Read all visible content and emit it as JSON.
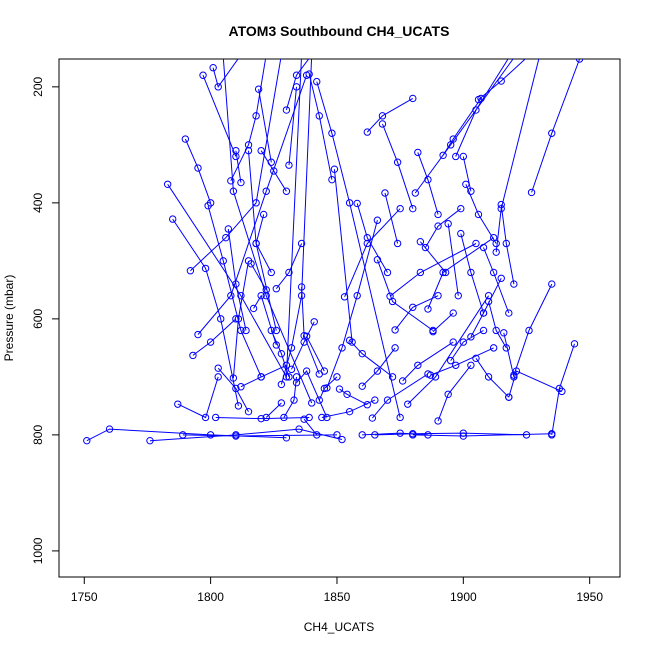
{
  "chart_data": {
    "type": "line",
    "title": "ATOM3 Southbound CH4_UCATS",
    "xlabel": "CH4_UCATS",
    "ylabel": "Pressure (mbar)",
    "xlim": [
      1740,
      1962
    ],
    "ylim": [
      1045,
      152
    ],
    "y_reversed": true,
    "grid": false,
    "legend": "none",
    "x_ticks": [
      1750,
      1800,
      1850,
      1900,
      1950
    ],
    "x_tick_labels": [
      "1750",
      "1800",
      "1850",
      "1900",
      "1950"
    ],
    "y_ticks": [
      200,
      400,
      600,
      800,
      1000
    ],
    "y_tick_labels": [
      "200",
      "400",
      "600",
      "800",
      "1000"
    ],
    "series_color": "#0000ff",
    "marker": "open-circle",
    "profiles": [
      {
        "x": [
          1751,
          1760,
          1800,
          1830
        ],
        "y": [
          810,
          790,
          800,
          805
        ]
      },
      {
        "x": [
          1776,
          1810,
          1835,
          1852
        ],
        "y": [
          810,
          800,
          790,
          808
        ]
      },
      {
        "x": [
          1783,
          1812,
          1830,
          1836
        ],
        "y": [
          368,
          560,
          700,
          145
        ]
      },
      {
        "x": [
          1785,
          1798,
          1804,
          1811
        ],
        "y": [
          428,
          513,
          600,
          750
        ]
      },
      {
        "x": [
          1787,
          1798,
          1803
        ],
        "y": [
          747,
          770,
          700
        ]
      },
      {
        "x": [
          1790,
          1795,
          1800
        ],
        "y": [
          290,
          340,
          400
        ]
      },
      {
        "x": [
          1792,
          1806,
          1818,
          1828
        ],
        "y": [
          517,
          460,
          400,
          145
        ]
      },
      {
        "x": [
          1793,
          1800,
          1810
        ],
        "y": [
          663,
          640,
          600
        ]
      },
      {
        "x": [
          1795,
          1808,
          1822,
          1838
        ],
        "y": [
          627,
          560,
          380,
          180
        ]
      },
      {
        "x": [
          1797,
          1810
        ],
        "y": [
          180,
          320
        ]
      },
      {
        "x": [
          1799,
          1805,
          1812,
          1820
        ],
        "y": [
          405,
          500,
          620,
          700
        ]
      },
      {
        "x": [
          1801,
          1803,
          1812
        ],
        "y": [
          167,
          200,
          145
        ]
      },
      {
        "x": [
          1803,
          1810,
          1815
        ],
        "y": [
          685,
          720,
          760
        ]
      },
      {
        "x": [
          1805,
          1809,
          1822,
          1840
        ],
        "y": [
          150,
          380,
          560,
          745
        ]
      },
      {
        "x": [
          1807,
          1810,
          1814
        ],
        "y": [
          445,
          540,
          620
        ]
      },
      {
        "x": [
          1808,
          1815,
          1818,
          1822
        ],
        "y": [
          362,
          300,
          250,
          145
        ]
      },
      {
        "x": [
          1809,
          1811,
          1815
        ],
        "y": [
          702,
          600,
          500
        ]
      },
      {
        "x": [
          1810,
          1812
        ],
        "y": [
          310,
          365
        ]
      },
      {
        "x": [
          1812,
          1820,
          1830
        ],
        "y": [
          717,
          700,
          680
        ]
      },
      {
        "x": [
          1815,
          1818,
          1826
        ],
        "y": [
          310,
          470,
          620
        ]
      },
      {
        "x": [
          1816,
          1822
        ],
        "y": [
          505,
          550
        ]
      },
      {
        "x": [
          1817,
          1820,
          1826
        ],
        "y": [
          582,
          560,
          645
        ]
      },
      {
        "x": [
          1819,
          1824
        ],
        "y": [
          204,
          330
        ]
      },
      {
        "x": [
          1820,
          1825,
          1830
        ],
        "y": [
          310,
          345,
          380
        ]
      },
      {
        "x": [
          1821,
          1818,
          1824
        ],
        "y": [
          420,
          470,
          520
        ]
      },
      {
        "x": [
          1822,
          1828
        ],
        "y": [
          770,
          745
        ]
      },
      {
        "x": [
          1824,
          1828,
          1831
        ],
        "y": [
          620,
          660,
          700
        ]
      },
      {
        "x": [
          1826,
          1831,
          1836
        ],
        "y": [
          548,
          520,
          470
        ]
      },
      {
        "x": [
          1828,
          1832,
          1836,
          1840
        ],
        "y": [
          713,
          650,
          560,
          145
        ]
      },
      {
        "x": [
          1829,
          1833,
          1834
        ],
        "y": [
          770,
          740,
          700
        ]
      },
      {
        "x": [
          1830,
          1834,
          1840
        ],
        "y": [
          240,
          180,
          145
        ]
      },
      {
        "x": [
          1831,
          1834
        ],
        "y": [
          335,
          200
        ]
      },
      {
        "x": [
          1832,
          1837,
          1841
        ],
        "y": [
          687,
          640,
          605
        ]
      },
      {
        "x": [
          1834,
          1838,
          1846
        ],
        "y": [
          710,
          690,
          770
        ]
      },
      {
        "x": [
          1836,
          1837,
          1843
        ],
        "y": [
          545,
          629,
          695
        ]
      },
      {
        "x": [
          1837,
          1842
        ],
        "y": [
          773,
          800
        ]
      },
      {
        "x": [
          1838,
          1845
        ],
        "y": [
          630,
          690
        ]
      },
      {
        "x": [
          1839,
          1843,
          1848
        ],
        "y": [
          178,
          250,
          360
        ]
      },
      {
        "x": [
          1842,
          1848,
          1855,
          1875
        ],
        "y": [
          191,
          280,
          400,
          770
        ]
      },
      {
        "x": [
          1843,
          1845,
          1850
        ],
        "y": [
          740,
          720,
          700
        ]
      },
      {
        "x": [
          1844,
          1855,
          1865
        ],
        "y": [
          770,
          760,
          740
        ]
      },
      {
        "x": [
          1846,
          1852,
          1858,
          1866
        ],
        "y": [
          719,
          650,
          560,
          430
        ]
      },
      {
        "x": [
          1849,
          1856
        ],
        "y": [
          342,
          640
        ]
      },
      {
        "x": [
          1851,
          1854,
          1862
        ],
        "y": [
          721,
          730,
          748
        ]
      },
      {
        "x": [
          1853,
          1862,
          1875
        ],
        "y": [
          562,
          470,
          410
        ]
      },
      {
        "x": [
          1855,
          1860,
          1872
        ],
        "y": [
          637,
          660,
          700
        ]
      },
      {
        "x": [
          1858,
          1862,
          1870
        ],
        "y": [
          401,
          460,
          520
        ]
      },
      {
        "x": [
          1860,
          1866,
          1873
        ],
        "y": [
          716,
          690,
          650
        ]
      },
      {
        "x": [
          1862,
          1868,
          1880
        ],
        "y": [
          278,
          250,
          220
        ]
      },
      {
        "x": [
          1864,
          1870,
          1886
        ],
        "y": [
          771,
          740,
          695
        ]
      },
      {
        "x": [
          1866,
          1872,
          1888
        ],
        "y": [
          498,
          570,
          620
        ]
      },
      {
        "x": [
          1868,
          1874,
          1880
        ],
        "y": [
          264,
          330,
          410
        ]
      },
      {
        "x": [
          1869,
          1874
        ],
        "y": [
          383,
          470
        ]
      },
      {
        "x": [
          1871,
          1883,
          1905
        ],
        "y": [
          561,
          520,
          470
        ]
      },
      {
        "x": [
          1873,
          1880,
          1890
        ],
        "y": [
          619,
          580,
          560
        ]
      },
      {
        "x": [
          1876,
          1882,
          1896
        ],
        "y": [
          707,
          680,
          640
        ]
      },
      {
        "x": [
          1878,
          1889,
          1910
        ],
        "y": [
          747,
          700,
          560
        ]
      },
      {
        "x": [
          1881,
          1895,
          1920
        ],
        "y": [
          383,
          300,
          150
        ]
      },
      {
        "x": [
          1882,
          1886,
          1890
        ],
        "y": [
          313,
          360,
          420
        ]
      },
      {
        "x": [
          1883,
          1893
        ],
        "y": [
          467,
          520
        ]
      },
      {
        "x": [
          1885,
          1890,
          1899
        ],
        "y": [
          477,
          440,
          410
        ]
      },
      {
        "x": [
          1886,
          1892,
          1912
        ],
        "y": [
          583,
          520,
          460
        ]
      },
      {
        "x": [
          1887,
          1897,
          1912
        ],
        "y": [
          697,
          680,
          650
        ]
      },
      {
        "x": [
          1888,
          1896
        ],
        "y": [
          622,
          590
        ]
      },
      {
        "x": [
          1890,
          1894,
          1903
        ],
        "y": [
          776,
          730,
          680
        ]
      },
      {
        "x": [
          1892,
          1896,
          1907
        ],
        "y": [
          318,
          290,
          220
        ]
      },
      {
        "x": [
          1894,
          1898
        ],
        "y": [
          436,
          560
        ]
      },
      {
        "x": [
          1895,
          1900,
          1908
        ],
        "y": [
          672,
          640,
          620
        ]
      },
      {
        "x": [
          1897,
          1905,
          1918
        ],
        "y": [
          320,
          240,
          150
        ]
      },
      {
        "x": [
          1899,
          1903,
          1908
        ],
        "y": [
          453,
          520,
          590
        ]
      },
      {
        "x": [
          1900,
          1903
        ],
        "y": [
          320,
          380
        ]
      },
      {
        "x": [
          1901,
          1906,
          1913
        ],
        "y": [
          368,
          420,
          470
        ]
      },
      {
        "x": [
          1903,
          1908,
          1915
        ],
        "y": [
          631,
          590,
          530
        ]
      },
      {
        "x": [
          1905,
          1910,
          1918
        ],
        "y": [
          668,
          700,
          735
        ]
      },
      {
        "x": [
          1906,
          1915,
          1925
        ],
        "y": [
          222,
          190,
          150
        ]
      },
      {
        "x": [
          1908,
          1912,
          1918
        ],
        "y": [
          477,
          520,
          590
        ]
      },
      {
        "x": [
          1910,
          1913,
          1917
        ],
        "y": [
          570,
          620,
          650
        ]
      },
      {
        "x": [
          1913,
          1915,
          1930
        ],
        "y": [
          485,
          410,
          150
        ]
      },
      {
        "x": [
          1915,
          1917,
          1920
        ],
        "y": [
          403,
          470,
          540
        ]
      },
      {
        "x": [
          1916,
          1920
        ],
        "y": [
          624,
          700
        ]
      },
      {
        "x": [
          1918,
          1921,
          1939
        ],
        "y": [
          735,
          690,
          725
        ]
      },
      {
        "x": [
          1920,
          1926,
          1935
        ],
        "y": [
          697,
          620,
          540
        ]
      },
      {
        "x": [
          1927,
          1935,
          1946
        ],
        "y": [
          382,
          280,
          152
        ]
      },
      {
        "x": [
          1935,
          1938,
          1944
        ],
        "y": [
          800,
          720,
          643
        ]
      },
      {
        "x": [
          1865,
          1880,
          1900,
          1925
        ],
        "y": [
          800,
          798,
          797,
          800
        ]
      },
      {
        "x": [
          1789,
          1810,
          1850
        ],
        "y": [
          800,
          802,
          800
        ]
      },
      {
        "x": [
          1802,
          1820,
          1839
        ],
        "y": [
          770,
          772,
          770
        ]
      },
      {
        "x": [
          1860,
          1875,
          1886
        ],
        "y": [
          800,
          797,
          800
        ]
      },
      {
        "x": [
          1880,
          1900,
          1935
        ],
        "y": [
          800,
          802,
          798
        ]
      }
    ]
  }
}
